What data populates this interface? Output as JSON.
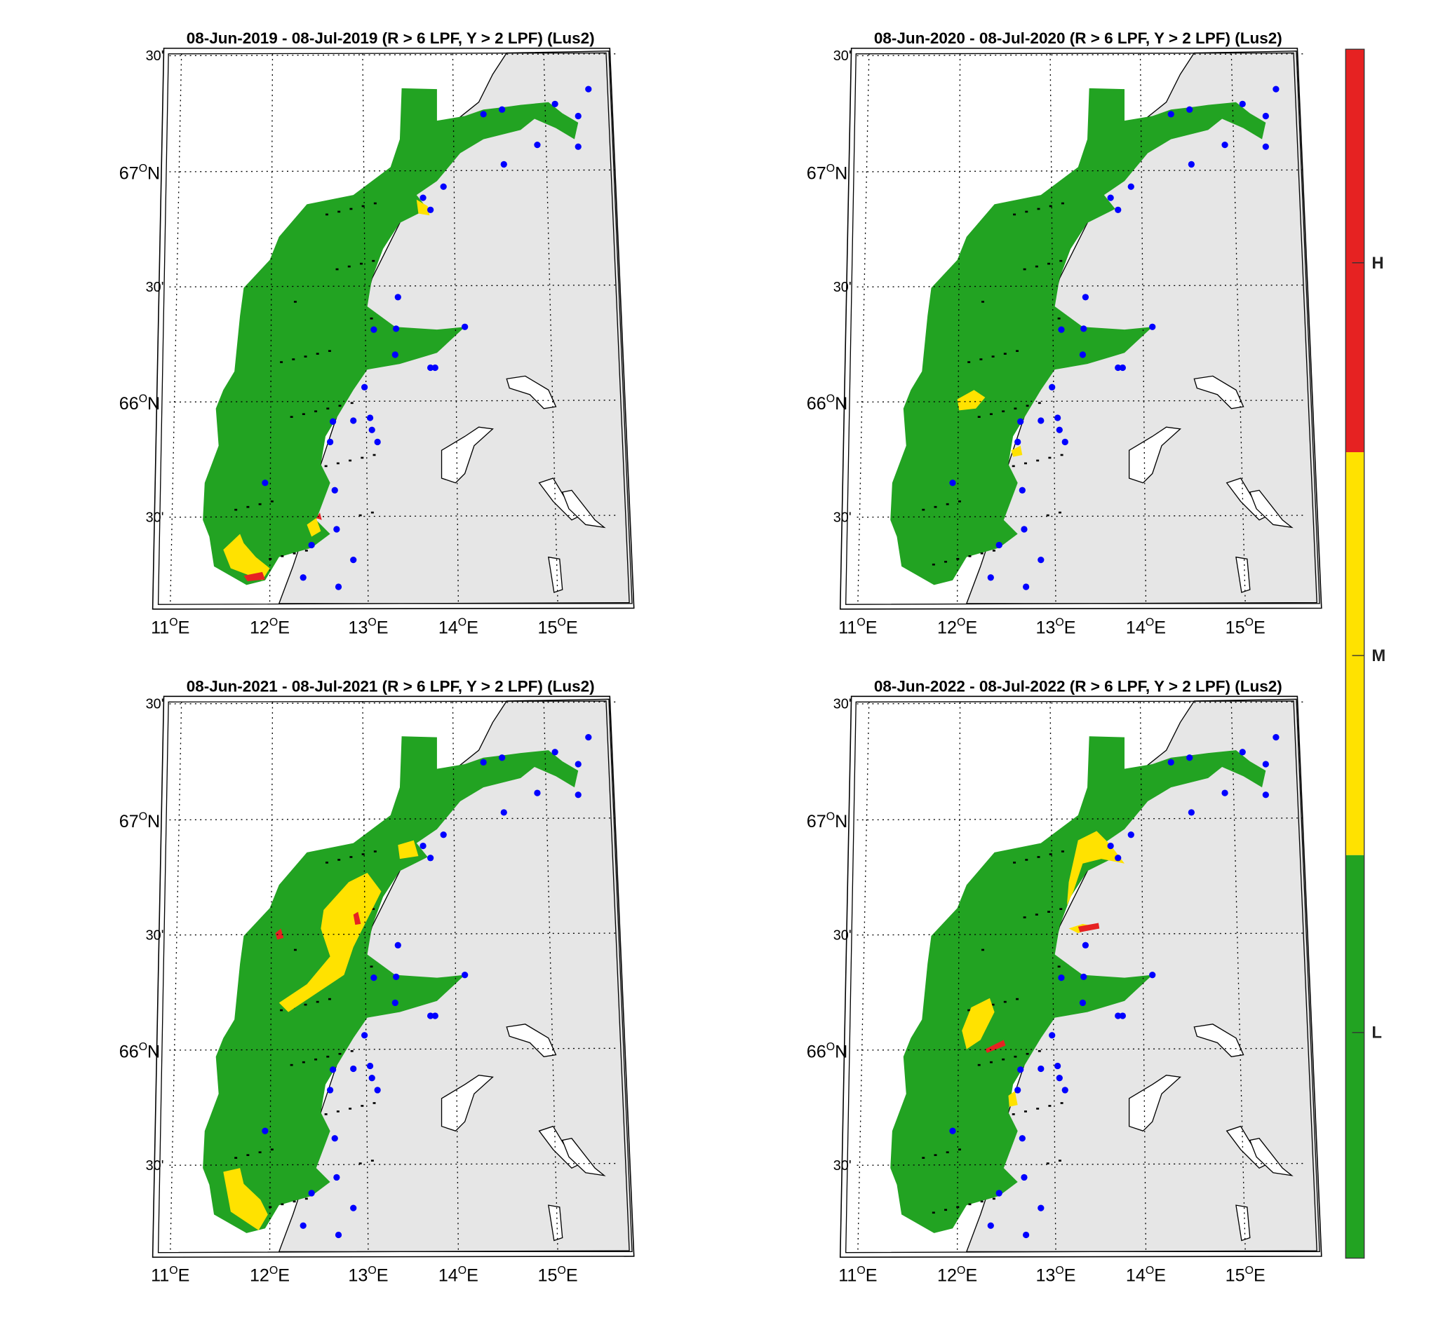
{
  "figure": {
    "panels": [
      {
        "title": "08-Jun-2019  - 08-Jul-2019  (R > 6 LPF, Y > 2 LPF) (Lus2)",
        "variant": "2019"
      },
      {
        "title": "08-Jun-2020  - 08-Jul-2020  (R > 6 LPF, Y > 2 LPF) (Lus2)",
        "variant": "2020"
      },
      {
        "title": "08-Jun-2021  - 08-Jul-2021  (R > 6 LPF, Y > 2 LPF) (Lus2)",
        "variant": "2021"
      },
      {
        "title": "08-Jun-2022  - 08-Jul-2022  (R > 6 LPF, Y > 2 LPF) (Lus2)",
        "variant": "2022"
      }
    ],
    "lat_labels": [
      "30'",
      "67",
      "30'",
      "66",
      "30'"
    ],
    "lat_suffix": "N",
    "lon_labels": [
      "11",
      "12",
      "13",
      "14",
      "15"
    ],
    "lon_suffix": "E",
    "degree_mark": "O",
    "colorbar": {
      "labels": [
        "H",
        "M",
        "L"
      ],
      "colors": {
        "H": "#e62222",
        "M": "#ffe200",
        "L": "#22a322"
      }
    },
    "colors": {
      "land": "#e6e6e6",
      "sea": "#ffffff",
      "station_marker": "#0000ff",
      "grid": "#000000"
    }
  }
}
